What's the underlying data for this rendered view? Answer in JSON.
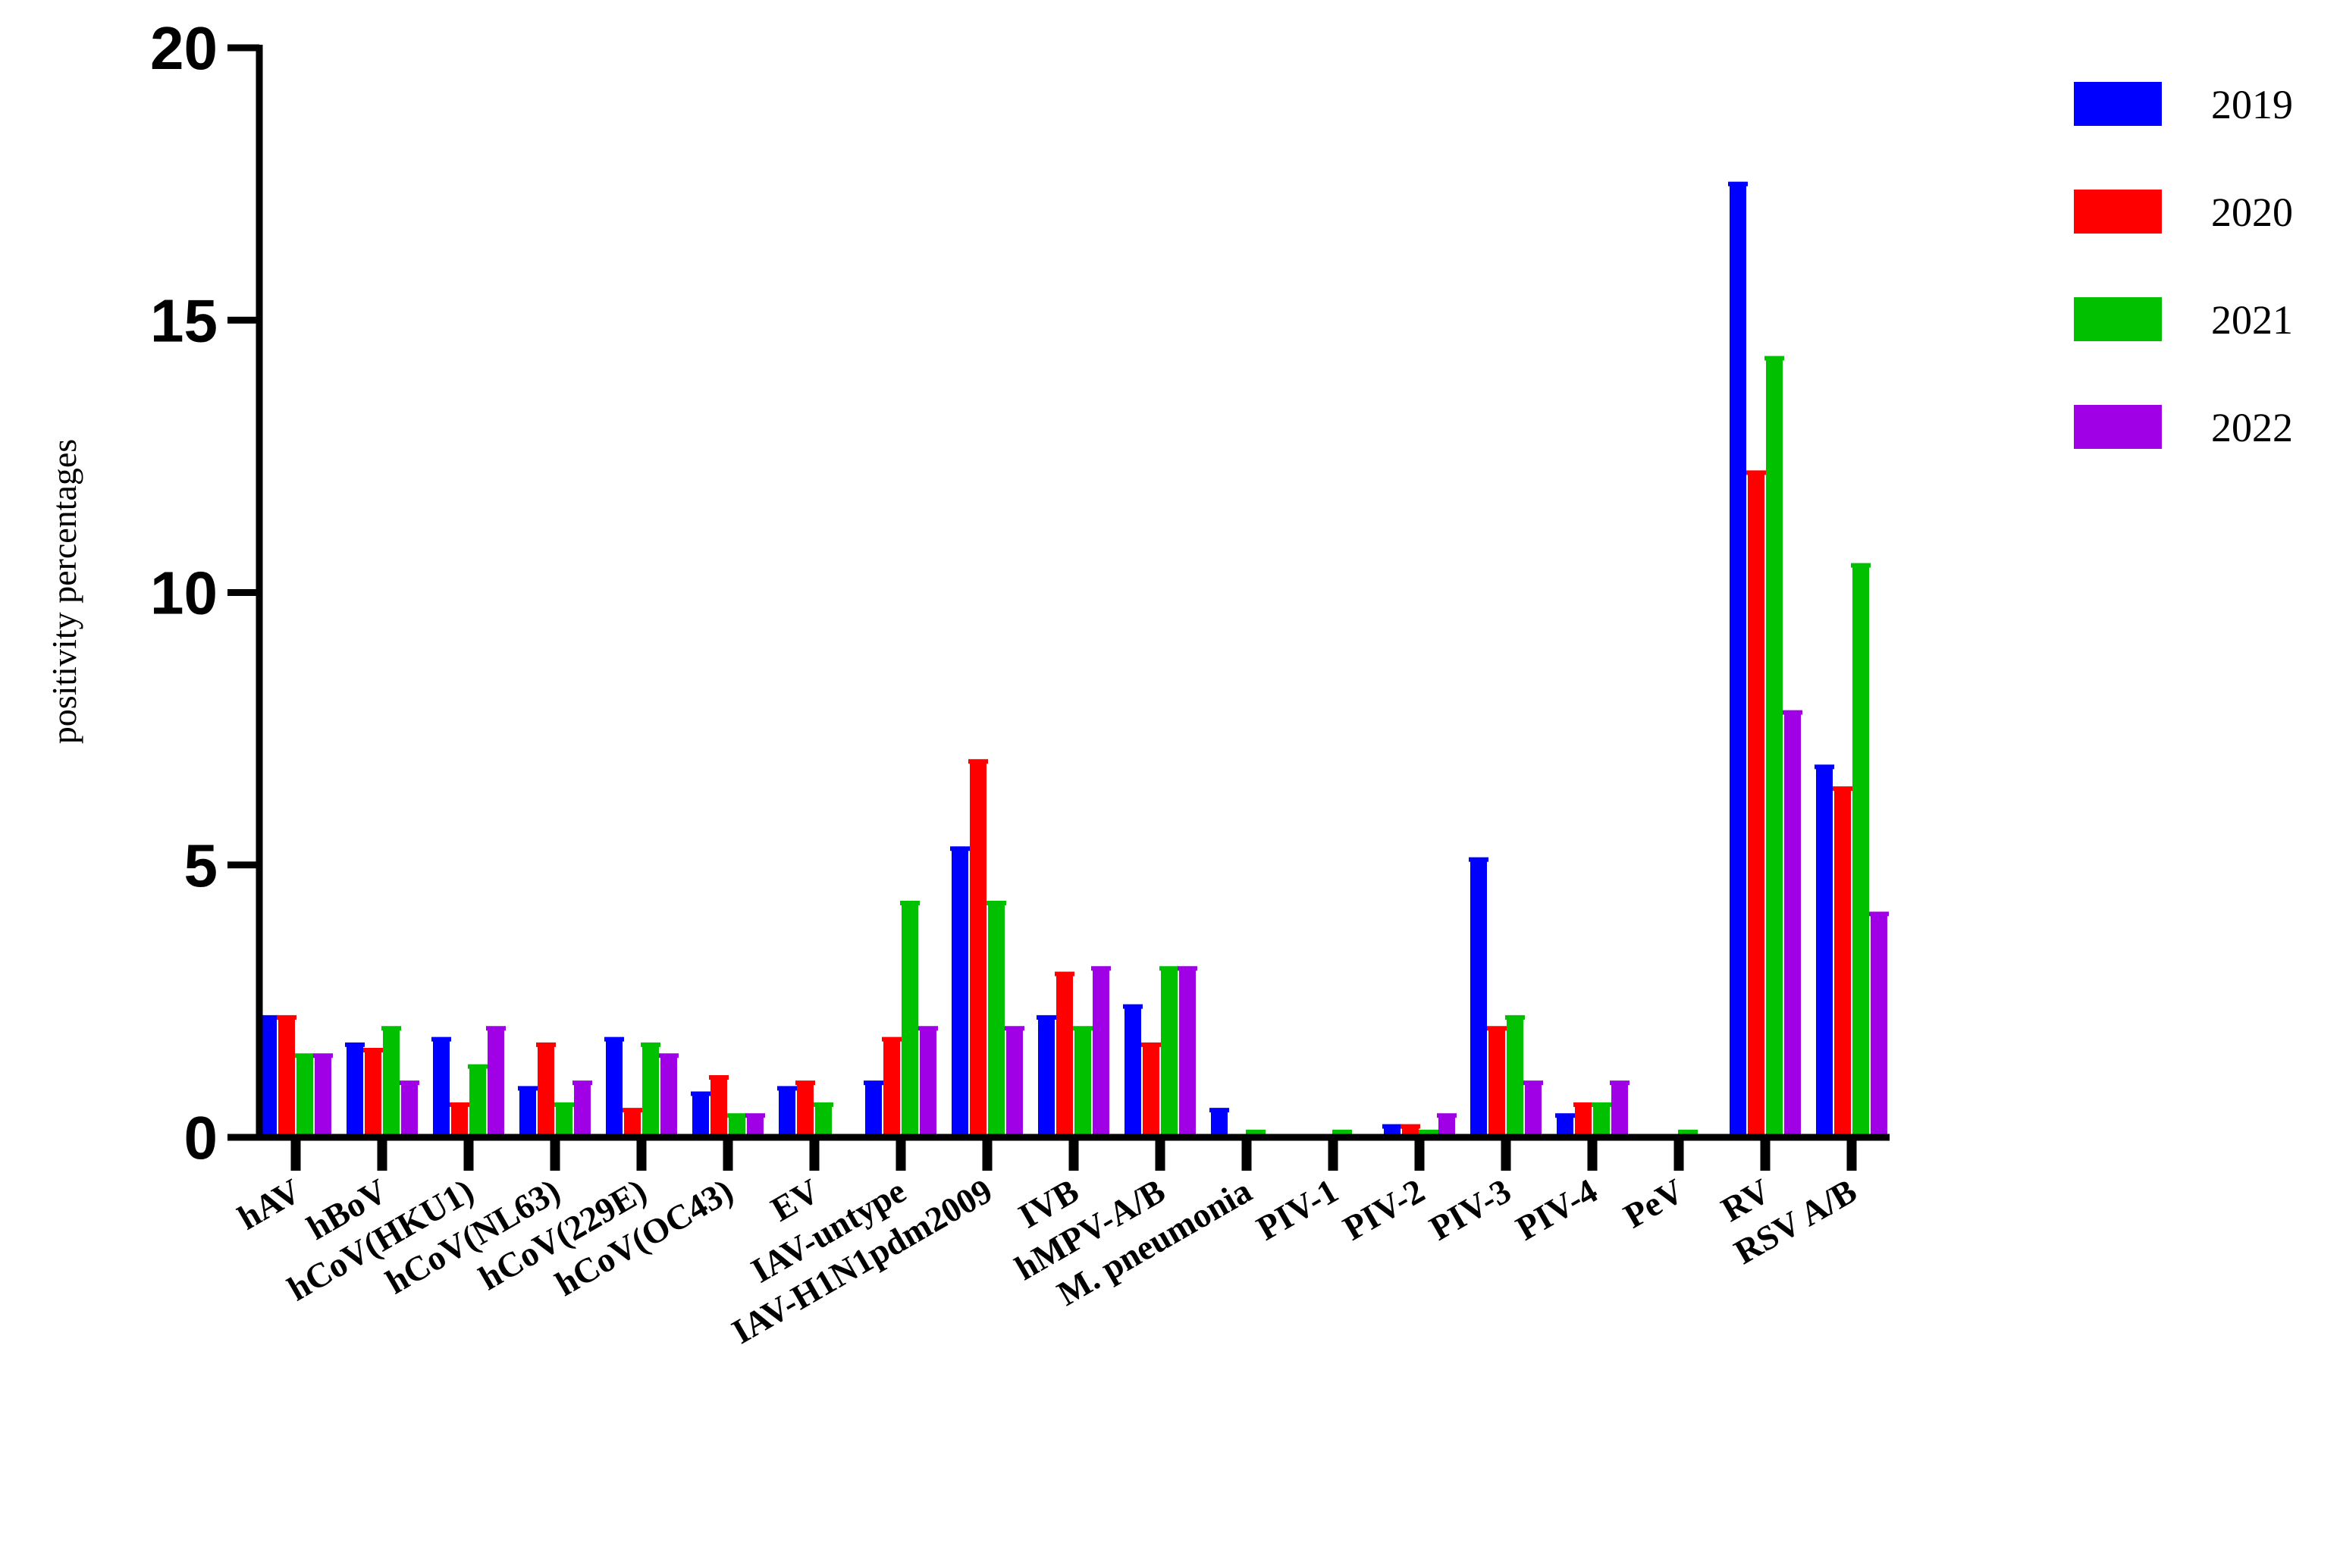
{
  "chart_data": {
    "type": "bar",
    "title": "",
    "xlabel": "",
    "ylabel": "positivity percentages",
    "ylim": [
      0,
      20
    ],
    "yticks": [
      0,
      5,
      10,
      15,
      20
    ],
    "grid": false,
    "legend_position": "top-right",
    "categories": [
      "hAV",
      "hBoV",
      "hCoV(HKU1)",
      "hCoV(NL63)",
      "hCoV(229E)",
      "hCoV(OC43)",
      "EV",
      "IAV-untype",
      "IAV-H1N1pdm2009",
      "IVB",
      "hMPV-A/B",
      "M. pneumonia",
      "PIV-1",
      "PIV-2",
      "PIV-3",
      "PIV-4",
      "PeV",
      "RV",
      "RSV A/B"
    ],
    "series": [
      {
        "name": "2019",
        "color": "#0000ff",
        "values": [
          2.2,
          1.7,
          1.8,
          0.9,
          1.8,
          0.8,
          0.9,
          1.0,
          5.3,
          2.2,
          2.4,
          0.5,
          0.0,
          0.2,
          5.1,
          0.4,
          0.0,
          17.5,
          6.8
        ]
      },
      {
        "name": "2020",
        "color": "#ff0000",
        "values": [
          2.2,
          1.6,
          0.6,
          1.7,
          0.5,
          1.1,
          1.0,
          1.8,
          6.9,
          3.0,
          1.7,
          0.0,
          0.0,
          0.2,
          2.0,
          0.6,
          0.0,
          12.2,
          6.4
        ]
      },
      {
        "name": "2021",
        "color": "#00c000",
        "values": [
          1.5,
          2.0,
          1.3,
          0.6,
          1.7,
          0.4,
          0.6,
          4.3,
          4.3,
          2.0,
          3.1,
          0.1,
          0.1,
          0.1,
          2.2,
          0.6,
          0.1,
          14.3,
          10.5
        ]
      },
      {
        "name": "2022",
        "color": "#a000e6",
        "values": [
          1.5,
          1.0,
          2.0,
          1.0,
          1.5,
          0.4,
          0.0,
          2.0,
          2.0,
          3.1,
          3.1,
          0.0,
          0.0,
          0.4,
          1.0,
          1.0,
          0.0,
          7.8,
          4.1
        ]
      }
    ]
  }
}
